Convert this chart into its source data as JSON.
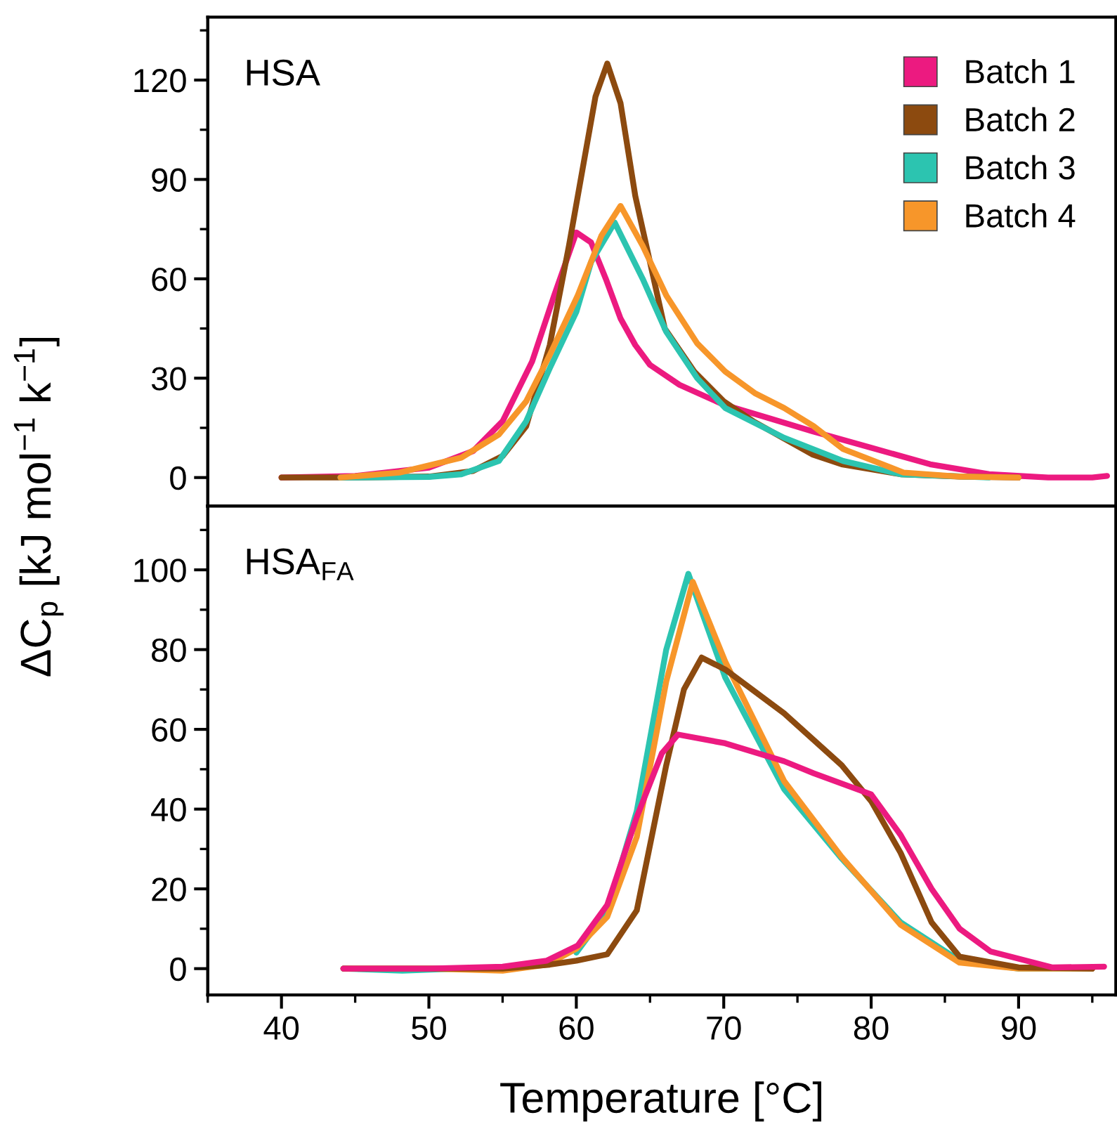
{
  "chart_data": [
    {
      "type": "line",
      "ylabel": "ΔC$_{p}$ [kJ mol$^{−1}$ k$^{−1}$]",
      "annotations": [
        "HSA"
      ],
      "legend": "top right",
      "tick_labels": "y",
      "xlim": [
        35,
        96.6
      ],
      "xticks": [
        40,
        50,
        60,
        70,
        80,
        90
      ],
      "ylim": [
        -8.6,
        139
      ],
      "yticks": [
        0,
        30,
        60,
        90,
        120
      ],
      "series": [
        {
          "name": "Batch 1",
          "color": "#ec1a80",
          "x": [
            40,
            45,
            50,
            53,
            55,
            57,
            58.5,
            60,
            61,
            62,
            63,
            64,
            65,
            67,
            70,
            73,
            76,
            80,
            84,
            88,
            92,
            95,
            96
          ],
          "values": [
            0,
            0.5,
            3,
            8,
            17,
            35,
            55,
            74,
            71,
            60,
            48,
            40,
            34,
            28,
            22,
            18,
            14,
            9,
            4,
            1,
            0,
            0,
            0.5
          ]
        },
        {
          "name": "Batch 2",
          "color": "#8c4a0f",
          "x": [
            40,
            45,
            50,
            53,
            55,
            56.6,
            58.2,
            59.5,
            60.5,
            61.3,
            62.1,
            63,
            64,
            64.5,
            66,
            68,
            70,
            72,
            74,
            76,
            78,
            82,
            86,
            90
          ],
          "values": [
            0,
            0,
            0.3,
            2,
            6.5,
            15.5,
            40,
            70,
            95,
            115,
            125,
            113,
            85,
            75,
            45,
            32,
            23,
            17,
            12,
            7,
            4,
            1,
            0.3,
            0
          ]
        },
        {
          "name": "Batch 3",
          "color": "#2cc4b0",
          "x": [
            44,
            50,
            52.2,
            54.75,
            56.6,
            58.2,
            60,
            61,
            62.6,
            64.5,
            66.1,
            68.2,
            70.1,
            74.1,
            78.1,
            82,
            88
          ],
          "values": [
            0,
            0.2,
            1,
            5,
            17,
            33,
            50,
            65,
            77,
            60,
            44,
            30,
            21,
            12,
            5,
            1,
            0
          ]
        },
        {
          "name": "Batch 4",
          "color": "#f7962a",
          "x": [
            44,
            48,
            52.2,
            54.75,
            56.6,
            58.2,
            60.1,
            61.7,
            63,
            64.5,
            66.1,
            68.2,
            70.1,
            72.1,
            74.1,
            76.1,
            78.1,
            82.2,
            86,
            90
          ],
          "values": [
            0,
            1.5,
            6,
            13,
            23,
            37,
            55,
            73,
            82,
            70,
            55,
            40.5,
            32,
            25.5,
            21,
            15.5,
            8.6,
            1.5,
            0.3,
            0
          ]
        }
      ]
    },
    {
      "type": "line",
      "xlabel": "Temperature [°C]",
      "annotations": [
        "HSA$_{FA}$"
      ],
      "xlim": [
        35,
        96.6
      ],
      "xticks": [
        40,
        50,
        60,
        70,
        80,
        90
      ],
      "ylim": [
        -6.6,
        116
      ],
      "yticks": [
        0,
        20,
        40,
        60,
        80,
        100
      ],
      "series": [
        {
          "color": "#2cc4b0",
          "x": [
            44.2,
            48.2,
            52,
            56,
            60,
            62.1,
            64.1,
            66.1,
            67.6,
            70.1,
            74.1,
            78,
            82,
            86,
            90,
            95
          ],
          "values": [
            0,
            -0.5,
            0,
            null,
            4,
            14.5,
            39.5,
            80,
            99,
            73,
            45,
            27.6,
            11.6,
            2,
            0,
            0
          ]
        },
        {
          "color": "#f7962a",
          "x": [
            44.2,
            50,
            55,
            58,
            60,
            62.1,
            64.1,
            66.1,
            67.9,
            70.1,
            74.1,
            78,
            82,
            86,
            90,
            95
          ],
          "values": [
            0,
            0,
            -0.5,
            1,
            5,
            13,
            33,
            72,
            97,
            77,
            47,
            28,
            11,
            1.5,
            0,
            0
          ]
        },
        {
          "color": "#8c4a0f",
          "x": [
            44.2,
            50,
            55,
            58.2,
            60,
            62.1,
            64.1,
            66.1,
            67.3,
            68.5,
            70.1,
            74.1,
            78,
            80,
            82,
            84.1,
            86,
            90,
            95
          ],
          "values": [
            0,
            0,
            0,
            1,
            2,
            3.6,
            14.6,
            51,
            70,
            78,
            75,
            64,
            51,
            42,
            29,
            11.6,
            3,
            0.3,
            0
          ]
        },
        {
          "color": "#ec1a80",
          "x": [
            44.2,
            50,
            55,
            58,
            60.1,
            62.1,
            64.1,
            65.8,
            66.9,
            70.1,
            74.1,
            76.1,
            80,
            82,
            84.1,
            86,
            88.1,
            92.3,
            95.8
          ],
          "values": [
            0,
            0,
            0.5,
            2,
            5.8,
            16,
            38,
            54,
            58.7,
            56.5,
            52,
            49,
            43.7,
            33.5,
            20,
            10,
            4.3,
            0.3,
            0.5
          ]
        }
      ]
    }
  ]
}
